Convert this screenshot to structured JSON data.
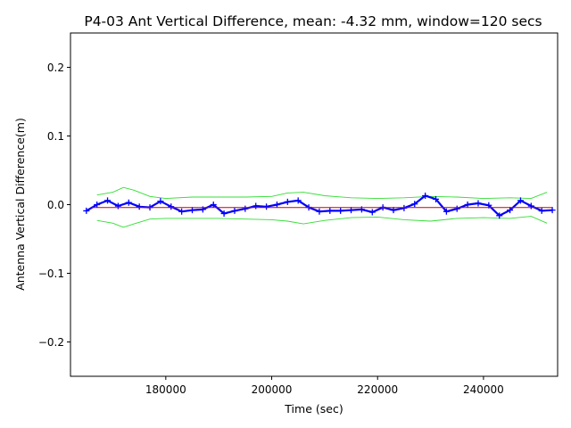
{
  "chart_data": {
    "type": "line",
    "title": "P4-03 Ant Vertical Difference, mean: -4.32 mm, window=120 secs",
    "xlabel": "Time (sec)",
    "ylabel": "Antenna Vertical Difference(m)",
    "xlim": [
      162000,
      254000
    ],
    "ylim": [
      -0.25,
      0.25
    ],
    "x_ticks": [
      180000,
      200000,
      220000,
      240000
    ],
    "x_tick_labels": [
      "180000",
      "200000",
      "220000",
      "240000"
    ],
    "y_ticks": [
      -0.2,
      -0.1,
      0.0,
      0.1,
      0.2
    ],
    "y_tick_labels": [
      "−0.2",
      "−0.1",
      "0.0",
      "0.1",
      "0.2"
    ],
    "grid": false,
    "series": [
      {
        "role": "data",
        "color": "#0000ff",
        "marker": "plus",
        "x": [
          165000,
          167000,
          169000,
          171000,
          173000,
          175000,
          177000,
          179000,
          181000,
          183000,
          185000,
          187000,
          189000,
          191000,
          193000,
          195000,
          197000,
          199000,
          201000,
          203000,
          205000,
          207000,
          209000,
          211000,
          213000,
          215000,
          217000,
          219000,
          221000,
          223000,
          225000,
          227000,
          229000,
          231000,
          233000,
          235000,
          237000,
          239000,
          241000,
          243000,
          245000,
          247000,
          249000,
          251000,
          253000
        ],
        "y": [
          -0.009,
          0.0,
          0.006,
          -0.002,
          0.003,
          -0.003,
          -0.004,
          0.005,
          -0.003,
          -0.01,
          -0.008,
          -0.007,
          0.0,
          -0.013,
          -0.009,
          -0.006,
          -0.002,
          -0.003,
          0.0,
          0.004,
          0.006,
          -0.004,
          -0.01,
          -0.009,
          -0.009,
          -0.008,
          -0.007,
          -0.011,
          -0.004,
          -0.008,
          -0.005,
          0.001,
          0.013,
          0.008,
          -0.01,
          -0.006,
          0.0,
          0.002,
          -0.001,
          -0.016,
          -0.008,
          0.006,
          -0.002,
          -0.009,
          -0.008
        ]
      },
      {
        "role": "mean",
        "color": "#cc0000",
        "x": [
          166000,
          253000
        ],
        "y": [
          -0.00432,
          -0.00432
        ]
      },
      {
        "role": "upper-bound",
        "color": "#33dd33",
        "x": [
          167000,
          170000,
          172000,
          174000,
          177000,
          180000,
          185000,
          190000,
          195000,
          200000,
          203000,
          206000,
          210000,
          215000,
          220000,
          225000,
          230000,
          235000,
          240000,
          245000,
          249000,
          252000
        ],
        "y": [
          0.014,
          0.018,
          0.025,
          0.021,
          0.012,
          0.009,
          0.011,
          0.011,
          0.011,
          0.012,
          0.017,
          0.018,
          0.013,
          0.01,
          0.009,
          0.01,
          0.012,
          0.011,
          0.009,
          0.01,
          0.009,
          0.018
        ]
      },
      {
        "role": "lower-bound",
        "color": "#33dd33",
        "x": [
          167000,
          170000,
          172000,
          174000,
          177000,
          180000,
          185000,
          190000,
          195000,
          200000,
          203000,
          206000,
          210000,
          215000,
          220000,
          225000,
          230000,
          235000,
          240000,
          245000,
          249000,
          252000
        ],
        "y": [
          -0.023,
          -0.027,
          -0.033,
          -0.028,
          -0.021,
          -0.02,
          -0.02,
          -0.02,
          -0.021,
          -0.022,
          -0.024,
          -0.028,
          -0.023,
          -0.019,
          -0.018,
          -0.022,
          -0.024,
          -0.02,
          -0.019,
          -0.02,
          -0.017,
          -0.027
        ]
      }
    ]
  }
}
